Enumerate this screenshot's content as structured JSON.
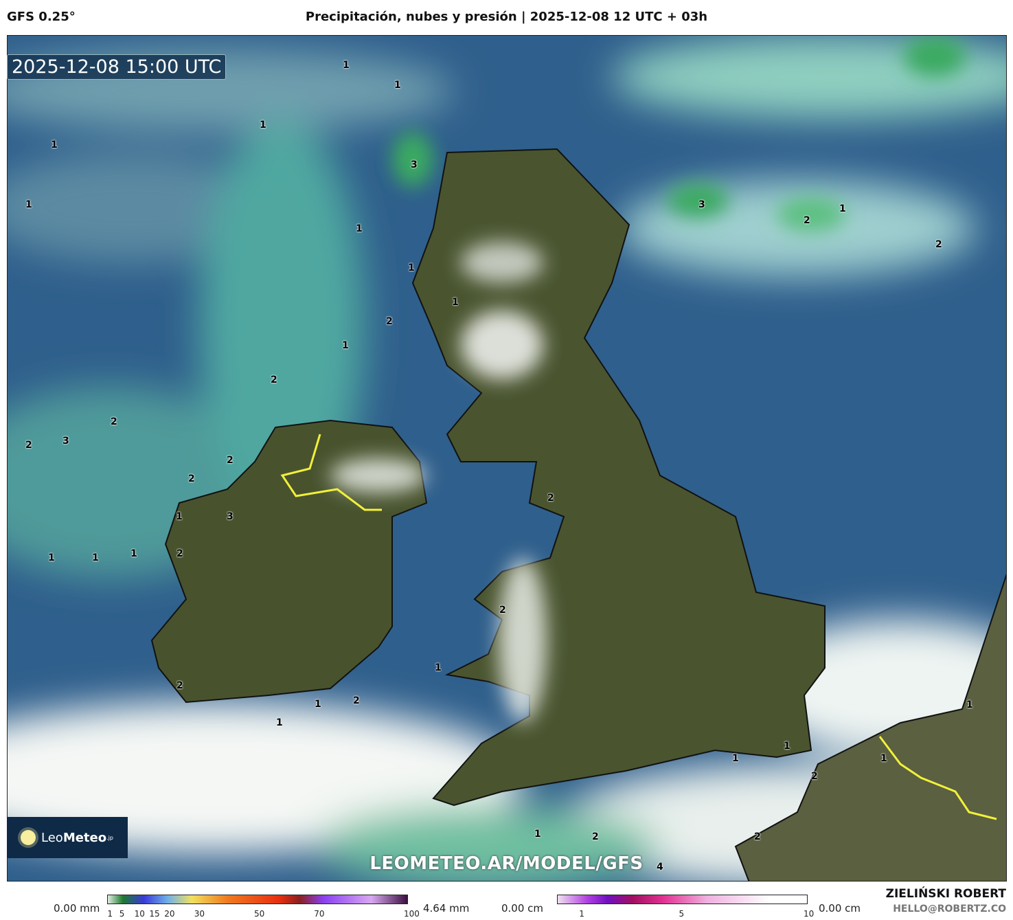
{
  "header": {
    "model": "GFS 0.25°",
    "title": "Precipitación, nubes y presión | 2025-12-08 12 UTC + 03h"
  },
  "map": {
    "timestamp": "2025-12-08 15:00 UTC",
    "url_watermark": "LEOMETEO.AR/MODEL/GFS",
    "logo": {
      "name": "LeoMeteo",
      "part1": "Leo",
      "part2": "Meteo",
      "suffix": ".jp"
    },
    "contour_labels": [
      "1",
      "1",
      "1",
      "1",
      "1",
      "3",
      "1",
      "1",
      "3",
      "2",
      "1",
      "2",
      "1",
      "2",
      "1",
      "2",
      "2",
      "2",
      "3",
      "2",
      "2",
      "2",
      "3",
      "1",
      "1",
      "1",
      "1",
      "2",
      "2",
      "1",
      "2",
      "1",
      "1",
      "1",
      "2",
      "2",
      "1",
      "1",
      "1",
      "2",
      "1",
      "2",
      "4"
    ],
    "colors": {
      "sea": "#2f5f8c",
      "land": "#4a5530",
      "cloud": "#f2f5f2",
      "precip": "#6fd3b0",
      "border_highlight": "#f2f03a"
    }
  },
  "legend": {
    "rain": {
      "min_label": "0.00 mm",
      "max_label": "4.64 mm",
      "ticks": [
        "1",
        "5",
        "10",
        "15",
        "20",
        "30",
        "50",
        "70",
        "100"
      ]
    },
    "snow": {
      "min_label": "0.00 cm",
      "max_label": "0.00 cm",
      "ticks": [
        "1",
        "5",
        "10"
      ]
    }
  },
  "credits": {
    "author": "ZIELIŃSKI ROBERT",
    "email": "HELLO@ROBERTZ.CO"
  }
}
